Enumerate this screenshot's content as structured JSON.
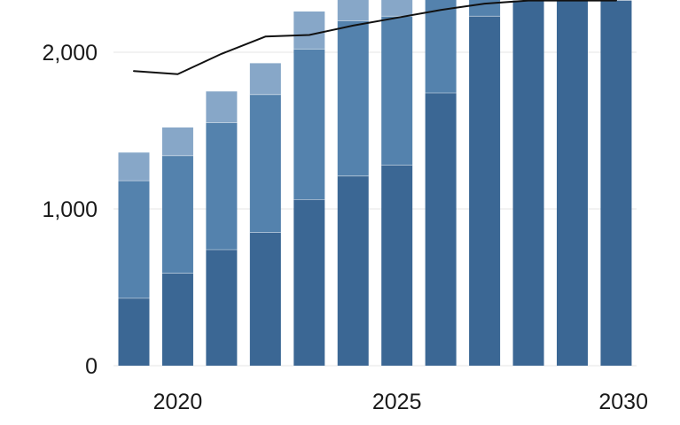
{
  "chart_data": {
    "type": "bar",
    "stacked": true,
    "title": "",
    "xlabel": "",
    "ylabel": "",
    "categories": [
      "2019",
      "2020",
      "2021",
      "2022",
      "2023",
      "2024",
      "2025",
      "2026",
      "2027",
      "2028",
      "2029",
      "2030"
    ],
    "x_ticks": [
      "2020",
      "2025",
      "2030"
    ],
    "y_ticks": [
      "0",
      "1,000",
      "2,000"
    ],
    "ylim": [
      0,
      2330
    ],
    "grid": true,
    "series": [
      {
        "values": [
          430,
          590,
          740,
          850,
          1060,
          1210,
          1280,
          1740,
          2230,
          2330,
          2330,
          2330
        ],
        "color": "#3b6794"
      },
      {
        "values": [
          750,
          750,
          810,
          880,
          960,
          990,
          950,
          760,
          160,
          0,
          0,
          0
        ],
        "color": "#5482ad"
      },
      {
        "values": [
          180,
          180,
          200,
          200,
          240,
          250,
          230,
          220,
          0,
          0,
          0,
          0
        ],
        "color": "#87a7c8"
      }
    ],
    "line": {
      "values": [
        1880,
        1860,
        1990,
        2100,
        2110,
        2170,
        2220,
        2270,
        2310,
        2330,
        2330,
        2330
      ],
      "color": "#111111"
    }
  }
}
